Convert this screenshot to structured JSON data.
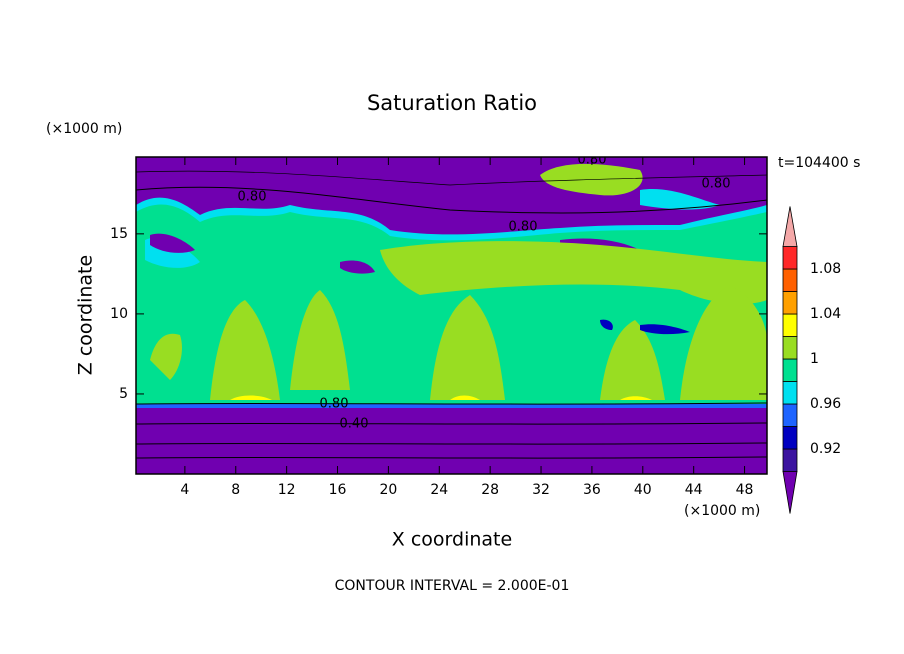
{
  "chart_data": {
    "type": "contour",
    "title": "Saturation Ratio",
    "x_label": "X coordinate",
    "y_label": "Z coordinate",
    "x_unit": "(×1000 m)",
    "y_unit": "(×1000 m)",
    "time_label": "t=104400 s",
    "footer": "CONTOUR INTERVAL = 2.000E-01",
    "xlim": [
      0,
      50
    ],
    "ylim": [
      0,
      19.8
    ],
    "xticks": [
      4,
      8,
      12,
      16,
      20,
      24,
      28,
      32,
      36,
      40,
      44,
      48
    ],
    "yticks": [
      5,
      10,
      15
    ],
    "contour_labels": [
      "0.80",
      "0.80",
      "0.80",
      "0.80",
      "0.80",
      "0.40"
    ],
    "colorbar": {
      "levels": [
        0.9,
        0.92,
        0.94,
        0.96,
        0.98,
        1,
        1.02,
        1.04,
        1.06,
        1.08,
        1.1
      ],
      "ticks": [
        0.92,
        0.96,
        1,
        1.04,
        1.08
      ],
      "colors": [
        "#7000b0",
        "#3c14a0",
        "#0000c0",
        "#1e64ff",
        "#00e0f0",
        "#00e090",
        "#99dd22",
        "#ffff00",
        "#ffa000",
        "#ff6000",
        "#ff2828",
        "#f4a8a8"
      ]
    }
  }
}
